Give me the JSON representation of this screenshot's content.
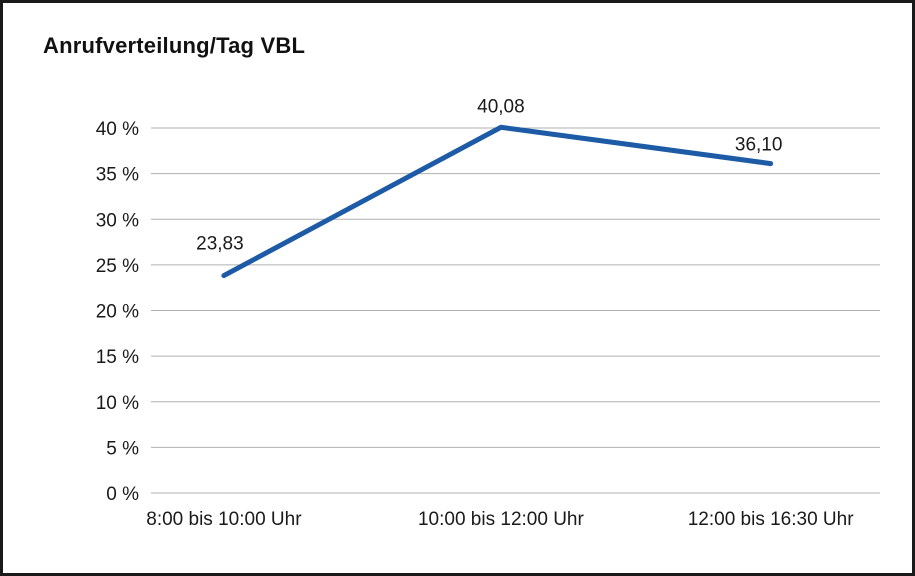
{
  "chart_data": {
    "type": "line",
    "title": "Anrufverteilung/Tag VBL",
    "categories": [
      "8:00 bis 10:00 Uhr",
      "10:00 bis 12:00 Uhr",
      "12:00 bis 16:30 Uhr"
    ],
    "values": [
      23.83,
      40.08,
      36.1
    ],
    "point_labels": [
      "23,83",
      "40,08",
      "36,10"
    ],
    "ylim": [
      0,
      40
    ],
    "ytick_step": 5,
    "ytick_values": [
      0,
      5,
      10,
      15,
      20,
      25,
      30,
      35,
      40
    ],
    "ytick_labels": [
      "0 %",
      "5 %",
      "10 %",
      "15 %",
      "20 %",
      "25 %",
      "30 %",
      "35 %",
      "40 %"
    ],
    "xlabel": "",
    "ylabel": "",
    "grid": "horizontal",
    "legend": "none",
    "line_color": "#1d5ba6",
    "grid_color": "#b0b0b0",
    "frame_border_color": "#1a1a1a"
  }
}
